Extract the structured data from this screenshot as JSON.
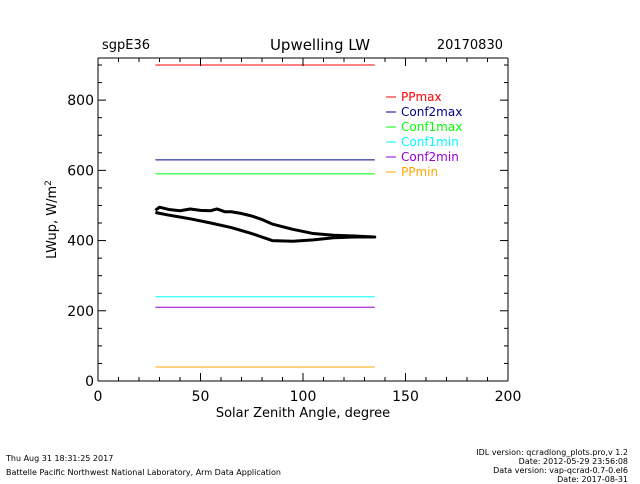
{
  "header": {
    "site": "sgpE36",
    "title": "Upwelling LW",
    "date": "20170830"
  },
  "footer": {
    "left_line1": "Thu Aug 31 18:31:25 2017",
    "left_line2": "Battelle Pacific Northwest National Laboratory, Arm Data Application",
    "right_lines": [
      "IDL version: qcradlong_plots.pro,v 1.2",
      "Date: 2012-05-29 23:56:08",
      "Data version: vap-qcrad-0.7-0.el6",
      "Date: 2017-08-31"
    ]
  },
  "chart_data": {
    "type": "line",
    "title": "Upwelling LW",
    "xlabel": "Solar Zenith Angle, degree",
    "ylabel": "LWup, W/m",
    "ylabel_sup": "2",
    "xlim": [
      0,
      200
    ],
    "ylim": [
      0,
      920
    ],
    "xticks": [
      0,
      50,
      100,
      150,
      200
    ],
    "yticks": [
      0,
      200,
      400,
      600,
      800
    ],
    "legend_position": "top-right",
    "limits": [
      {
        "name": "PPmax",
        "value": 900,
        "color": "#ff0000",
        "x": [
          28,
          135
        ]
      },
      {
        "name": "Conf2max",
        "value": 630,
        "color": "#00008b",
        "x": [
          28,
          135
        ]
      },
      {
        "name": "Conf1max",
        "value": 590,
        "color": "#00ff00",
        "x": [
          28,
          135
        ]
      },
      {
        "name": "Conf1min",
        "value": 240,
        "color": "#00ffff",
        "x": [
          28,
          135
        ]
      },
      {
        "name": "Conf2min",
        "value": 210,
        "color": "#9400d3",
        "x": [
          28,
          135
        ]
      },
      {
        "name": "PPmin",
        "value": 40,
        "color": "#ffa500",
        "x": [
          28,
          135
        ]
      }
    ],
    "series": [
      {
        "color": "#000000",
        "x": [
          28,
          35,
          45,
          55,
          65,
          75,
          85,
          95,
          105,
          115,
          125,
          135,
          125,
          115,
          105,
          95,
          85,
          80,
          75,
          70,
          65,
          62,
          58,
          55,
          50,
          45,
          40,
          35,
          30,
          28
        ],
        "y": [
          480,
          472,
          462,
          450,
          437,
          420,
          400,
          398,
          402,
          408,
          410,
          410,
          413,
          415,
          420,
          432,
          447,
          460,
          470,
          477,
          482,
          482,
          490,
          485,
          486,
          490,
          485,
          488,
          495,
          486
        ]
      }
    ]
  }
}
